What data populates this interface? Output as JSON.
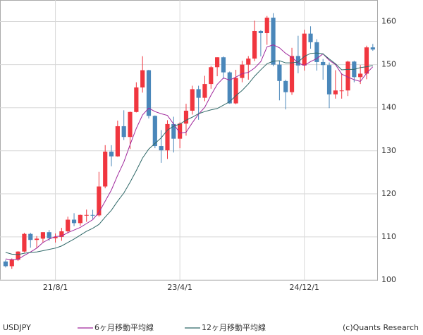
{
  "chart_data": {
    "type": "candlestick",
    "title": "USDJPY",
    "source": "(c)Quants Research",
    "categories": [
      null,
      null,
      null,
      null,
      null,
      null,
      null,
      null,
      "21/8/1",
      null,
      null,
      null,
      null,
      null,
      null,
      null,
      null,
      null,
      null,
      null,
      null,
      null,
      null,
      null,
      null,
      null,
      null,
      null,
      "23/4/1",
      null,
      null,
      null,
      null,
      null,
      null,
      null,
      null,
      null,
      null,
      null,
      null,
      null,
      null,
      null,
      null,
      null,
      null,
      null,
      "24/12/1",
      null,
      null,
      null,
      null,
      null,
      null,
      null,
      null,
      null,
      null,
      null
    ],
    "open": [
      104.3,
      103.2,
      104.7,
      106.6,
      110.7,
      109.3,
      109.6,
      111.1,
      109.7,
      110.0,
      111.3,
      114.0,
      113.2,
      115.1,
      115.1,
      115.0,
      121.7,
      129.8,
      128.7,
      135.7,
      133.2,
      139.0,
      144.7,
      148.7,
      138.1,
      131.1,
      130.1,
      136.2,
      132.8,
      136.3,
      139.3,
      144.3,
      142.3,
      145.5,
      149.4,
      151.7,
      148.2,
      141.0,
      146.9,
      150.0,
      151.4,
      157.8,
      157.3,
      160.9,
      150.0,
      146.2,
      143.6,
      152.0,
      149.8,
      157.2,
      155.2,
      150.6,
      149.9,
      143.1,
      144.0,
      144.0,
      150.7,
      147.1,
      147.9,
      154.0
    ],
    "high": [
      104.7,
      105.0,
      106.7,
      110.97,
      110.96,
      110.2,
      111.1,
      111.6,
      110.8,
      112.1,
      114.7,
      115.5,
      115.2,
      116.35,
      116.3,
      125.1,
      131.3,
      131.3,
      137.0,
      139.4,
      139.1,
      145.9,
      151.95,
      148.8,
      138.2,
      134.8,
      137.1,
      137.9,
      136.6,
      140.9,
      145.1,
      145.1,
      147.4,
      149.7,
      151.7,
      151.9,
      148.4,
      148.8,
      150.9,
      151.97,
      160.2,
      157.99,
      161.3,
      161.95,
      150.9,
      146.5,
      153.9,
      156.7,
      158.1,
      158.9,
      155.9,
      151.3,
      150.5,
      148.7,
      148.0,
      150.9,
      150.9,
      149.9,
      154.4,
      154.8
    ],
    "low": [
      102.9,
      102.6,
      104.4,
      106.4,
      107.5,
      107.5,
      108.6,
      109.1,
      108.7,
      109.1,
      110.8,
      112.5,
      112.6,
      113.5,
      114.2,
      114.7,
      121.3,
      126.4,
      128.6,
      132.5,
      130.4,
      138.9,
      143.5,
      137.5,
      130.6,
      127.2,
      128.1,
      129.6,
      130.6,
      133.5,
      138.4,
      137.2,
      141.5,
      144.4,
      147.3,
      146.7,
      140.9,
      140.8,
      145.9,
      146.5,
      150.8,
      151.9,
      154.6,
      149.6,
      141.7,
      139.6,
      142.97,
      148.0,
      148.6,
      153.7,
      148.6,
      146.5,
      139.9,
      142.1,
      142.1,
      142.7,
      145.9,
      145.5,
      146.6,
      153.2
    ],
    "close": [
      103.2,
      104.7,
      106.6,
      110.7,
      109.3,
      109.6,
      111.1,
      109.7,
      110.0,
      111.3,
      114.0,
      113.2,
      115.1,
      115.1,
      115.0,
      121.7,
      129.8,
      128.7,
      135.7,
      133.2,
      139.0,
      144.7,
      148.7,
      138.1,
      131.1,
      130.1,
      136.2,
      132.8,
      136.3,
      139.3,
      144.3,
      142.3,
      145.5,
      149.4,
      151.7,
      148.2,
      141.0,
      146.9,
      150.0,
      151.4,
      157.8,
      157.3,
      160.9,
      150.0,
      146.2,
      143.6,
      152.0,
      149.8,
      157.2,
      155.2,
      150.6,
      149.9,
      143.1,
      144.0,
      144.0,
      150.7,
      147.1,
      147.9,
      154.0,
      153.5
    ],
    "up_color": "#f0363f",
    "down_color": "#4a87ba",
    "series": [
      {
        "name": "6ヶ月移動平均線",
        "color": "#a0289c",
        "values": [
          104.9,
          104.7,
          104.8,
          105.7,
          106.5,
          107.4,
          108.7,
          109.5,
          110.1,
          110.2,
          111.0,
          111.6,
          112.2,
          113.1,
          114.0,
          115.7,
          118.3,
          120.9,
          124.3,
          127.4,
          131.4,
          135.2,
          138.3,
          139.9,
          139.1,
          138.6,
          138.2,
          136.2,
          134.1,
          134.3,
          136.5,
          138.5,
          140.1,
          142.9,
          145.4,
          146.9,
          146.4,
          147.1,
          147.9,
          148.2,
          149.2,
          150.7,
          154.1,
          154.6,
          153.9,
          152.6,
          151.7,
          150.4,
          149.8,
          150.7,
          151.4,
          152.5,
          151.0,
          150.0,
          147.8,
          147.1,
          146.5,
          146.1,
          148.0,
          149.5
        ]
      },
      {
        "name": "12ヶ月移動平均線",
        "color": "#2f6868",
        "values": [
          106.4,
          106.0,
          105.9,
          106.2,
          106.4,
          106.5,
          106.8,
          107.1,
          107.4,
          107.9,
          108.7,
          109.5,
          110.4,
          111.3,
          112.0,
          112.9,
          114.6,
          116.2,
          118.3,
          120.2,
          122.7,
          125.4,
          128.3,
          130.4,
          131.7,
          133.0,
          134.8,
          135.7,
          136.2,
          137.1,
          137.8,
          138.6,
          139.1,
          139.5,
          139.8,
          140.6,
          141.4,
          142.8,
          144.0,
          145.5,
          147.3,
          148.8,
          150.2,
          150.8,
          150.9,
          150.4,
          150.4,
          150.6,
          151.9,
          152.6,
          152.7,
          152.5,
          151.3,
          150.2,
          148.8,
          148.9,
          148.9,
          149.3,
          149.5,
          149.8
        ]
      }
    ],
    "ylim": [
      100,
      165
    ],
    "yticks": [
      100,
      110,
      120,
      130,
      140,
      150,
      160
    ],
    "grid": true
  }
}
